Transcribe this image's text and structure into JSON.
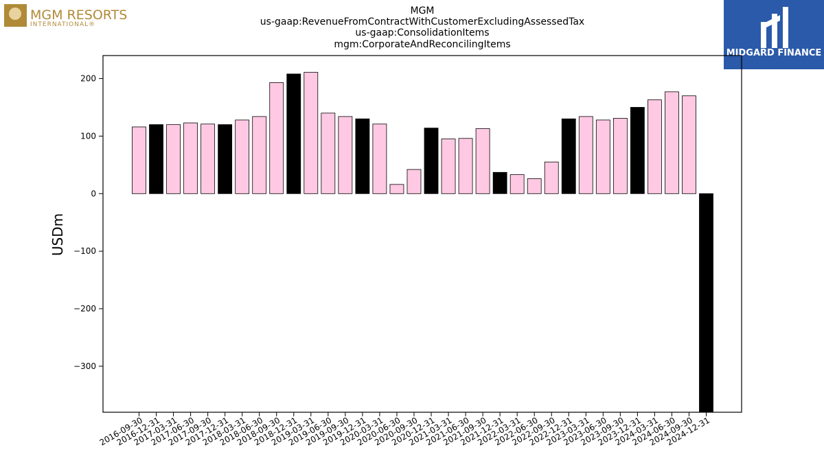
{
  "logos": {
    "left": {
      "name": "MGM RESORTS",
      "sub": "INTERNATIONAL®",
      "color": "#b08a37"
    },
    "right": {
      "name": "MIDGARD FINANCE",
      "bg_color": "#2a5aa9"
    }
  },
  "chart_data": {
    "type": "bar",
    "title_lines": [
      "MGM",
      "us-gaap:RevenueFromContractWithCustomerExcludingAssessedTax",
      "us-gaap:ConsolidationItems",
      "mgm:CorporateAndReconcilingItems"
    ],
    "xlabel": "",
    "ylabel": "USDm",
    "ylim": [
      -380,
      240
    ],
    "yticks": [
      -300,
      -200,
      -100,
      0,
      100,
      200
    ],
    "ytick_labels": [
      "−300",
      "−200",
      "−100",
      "0",
      "100",
      "200"
    ],
    "grid": false,
    "colors": {
      "quarterly": "#ffc9e3",
      "annual": "#000000",
      "edge": "#000000"
    },
    "categories": [
      "2016-09-30",
      "2016-12-31",
      "2017-03-31",
      "2017-06-30",
      "2017-09-30",
      "2017-12-31",
      "2018-03-31",
      "2018-06-30",
      "2018-09-30",
      "2018-12-31",
      "2019-03-31",
      "2019-06-30",
      "2019-09-30",
      "2019-12-31",
      "2020-03-31",
      "2020-06-30",
      "2020-09-30",
      "2020-12-31",
      "2021-03-31",
      "2021-06-30",
      "2021-09-30",
      "2021-12-31",
      "2022-03-31",
      "2022-06-30",
      "2022-09-30",
      "2022-12-31",
      "2023-03-31",
      "2023-06-30",
      "2023-09-30",
      "2023-12-31",
      "2024-03-31",
      "2024-06-30",
      "2024-09-30",
      "2024-12-31"
    ],
    "values": [
      116,
      120,
      120,
      123,
      121,
      120,
      128,
      134,
      193,
      208,
      211,
      140,
      134,
      130,
      121,
      16,
      42,
      114,
      95,
      96,
      113,
      37,
      33,
      26,
      55,
      130,
      134,
      128,
      131,
      150,
      163,
      177,
      170,
      -380
    ],
    "is_annual": [
      false,
      true,
      false,
      false,
      false,
      true,
      false,
      false,
      false,
      true,
      false,
      false,
      false,
      true,
      false,
      false,
      false,
      true,
      false,
      false,
      false,
      true,
      false,
      false,
      false,
      true,
      false,
      false,
      false,
      true,
      false,
      false,
      false,
      true
    ]
  }
}
